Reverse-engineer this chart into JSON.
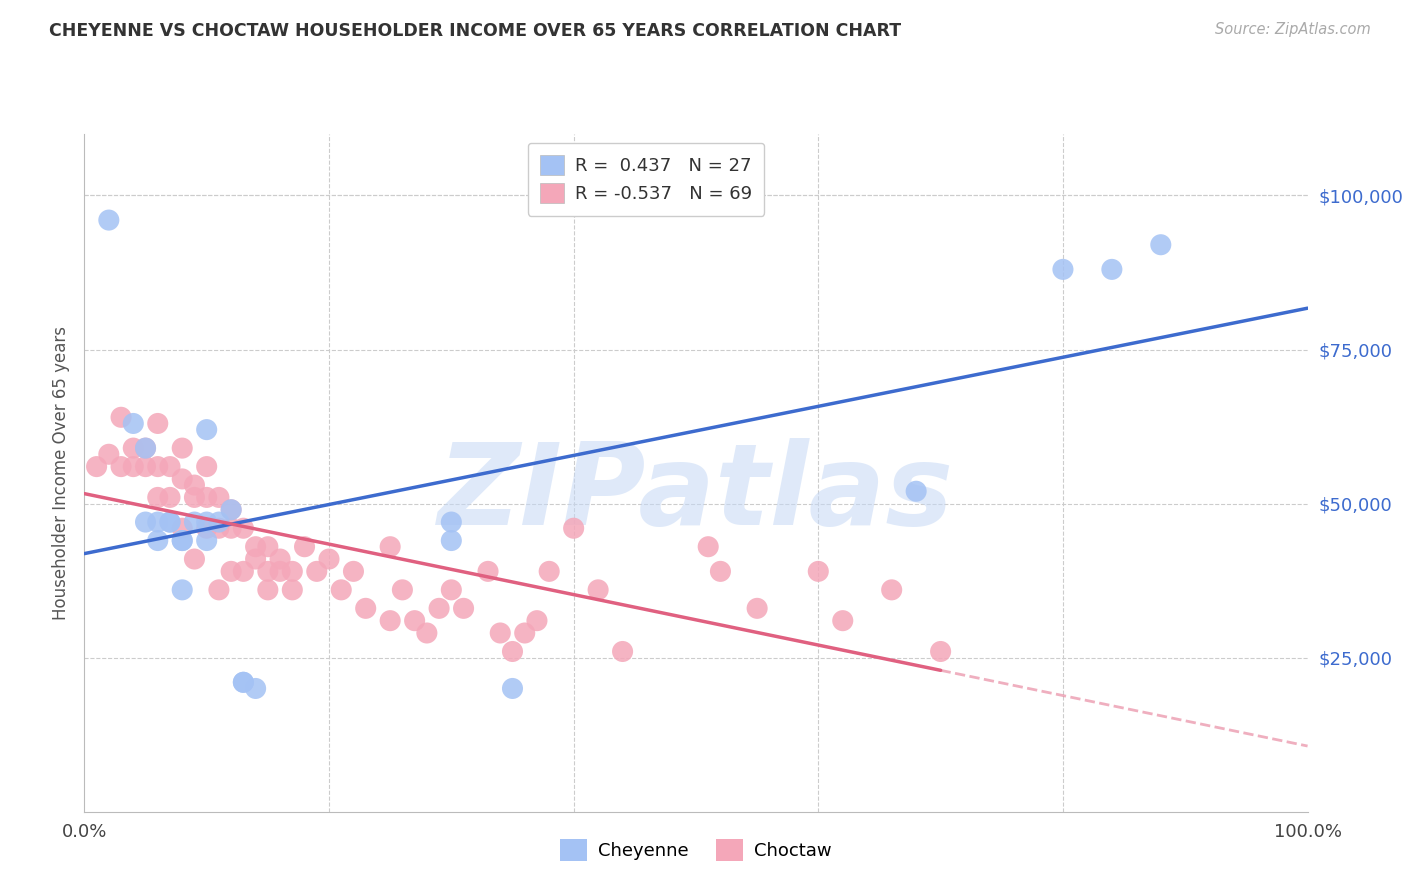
{
  "title": "CHEYENNE VS CHOCTAW HOUSEHOLDER INCOME OVER 65 YEARS CORRELATION CHART",
  "source": "Source: ZipAtlas.com",
  "ylabel": "Householder Income Over 65 years",
  "xlim": [
    0.0,
    1.0
  ],
  "ylim": [
    0,
    110000
  ],
  "ytick_values": [
    25000,
    50000,
    75000,
    100000
  ],
  "ytick_labels": [
    "$25,000",
    "$50,000",
    "$75,000",
    "$100,000"
  ],
  "xtick_values": [
    0.0,
    1.0
  ],
  "xtick_labels": [
    "0.0%",
    "100.0%"
  ],
  "cheyenne_color": "#a4c2f4",
  "choctaw_color": "#f4a7b9",
  "cheyenne_line_color": "#3d6bce",
  "choctaw_line_color": "#e06080",
  "cheyenne_R": 0.437,
  "cheyenne_N": 27,
  "choctaw_R": -0.537,
  "choctaw_N": 69,
  "watermark_text": "ZIPatlas",
  "watermark_color": "#c5d8f5",
  "background_color": "#ffffff",
  "grid_color": "#cccccc",
  "cheyenne_x": [
    0.02,
    0.04,
    0.05,
    0.05,
    0.06,
    0.06,
    0.07,
    0.07,
    0.08,
    0.08,
    0.08,
    0.09,
    0.1,
    0.1,
    0.1,
    0.11,
    0.12,
    0.13,
    0.13,
    0.14,
    0.3,
    0.3,
    0.35,
    0.68,
    0.8,
    0.84,
    0.88
  ],
  "cheyenne_y": [
    96000,
    63000,
    59000,
    47000,
    47000,
    44000,
    47000,
    47000,
    44000,
    44000,
    36000,
    47000,
    62000,
    47000,
    44000,
    47000,
    49000,
    21000,
    21000,
    20000,
    47000,
    44000,
    20000,
    52000,
    88000,
    88000,
    92000
  ],
  "choctaw_x": [
    0.01,
    0.02,
    0.03,
    0.03,
    0.04,
    0.04,
    0.05,
    0.05,
    0.06,
    0.06,
    0.06,
    0.07,
    0.07,
    0.08,
    0.08,
    0.08,
    0.09,
    0.09,
    0.09,
    0.1,
    0.1,
    0.1,
    0.11,
    0.11,
    0.11,
    0.12,
    0.12,
    0.12,
    0.13,
    0.13,
    0.14,
    0.14,
    0.15,
    0.15,
    0.15,
    0.16,
    0.16,
    0.17,
    0.17,
    0.18,
    0.19,
    0.2,
    0.21,
    0.22,
    0.23,
    0.25,
    0.25,
    0.26,
    0.27,
    0.28,
    0.29,
    0.3,
    0.31,
    0.33,
    0.34,
    0.35,
    0.36,
    0.37,
    0.38,
    0.4,
    0.42,
    0.44,
    0.51,
    0.52,
    0.55,
    0.6,
    0.62,
    0.66,
    0.7
  ],
  "choctaw_y": [
    56000,
    58000,
    64000,
    56000,
    59000,
    56000,
    59000,
    56000,
    63000,
    56000,
    51000,
    56000,
    51000,
    59000,
    54000,
    46000,
    53000,
    51000,
    41000,
    56000,
    51000,
    46000,
    51000,
    46000,
    36000,
    49000,
    46000,
    39000,
    46000,
    39000,
    43000,
    41000,
    43000,
    39000,
    36000,
    41000,
    39000,
    39000,
    36000,
    43000,
    39000,
    41000,
    36000,
    39000,
    33000,
    43000,
    31000,
    36000,
    31000,
    29000,
    33000,
    36000,
    33000,
    39000,
    29000,
    26000,
    29000,
    31000,
    39000,
    46000,
    36000,
    26000,
    43000,
    39000,
    33000,
    39000,
    31000,
    36000,
    26000
  ]
}
